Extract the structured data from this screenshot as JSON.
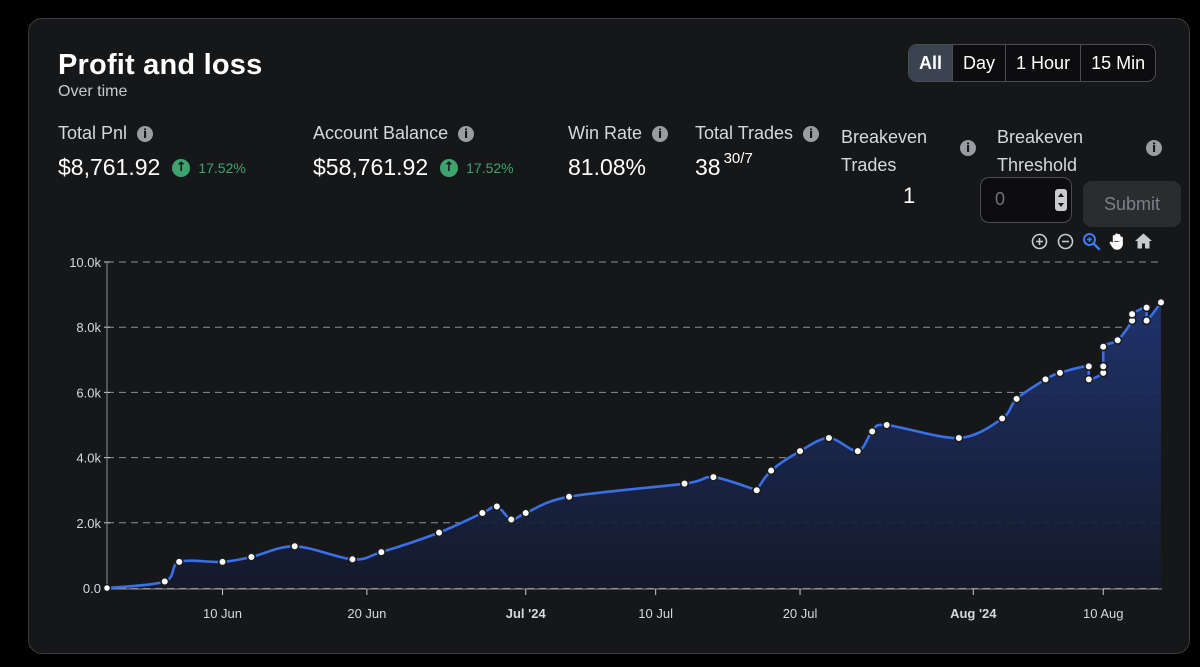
{
  "header": {
    "title": "Profit and loss",
    "subtitle": "Over time"
  },
  "range_tabs": [
    {
      "label": "All",
      "active": true
    },
    {
      "label": "Day",
      "active": false
    },
    {
      "label": "1 Hour",
      "active": false
    },
    {
      "label": "15 Min",
      "active": false
    }
  ],
  "metrics": {
    "total_pnl": {
      "label": "Total Pnl",
      "value": "$8,761.92",
      "change": "17.52%"
    },
    "account_balance": {
      "label": "Account Balance",
      "value": "$58,761.92",
      "change": "17.52%"
    },
    "win_rate": {
      "label": "Win Rate",
      "value": "81.08%"
    },
    "total_trades": {
      "label": "Total Trades",
      "value": "38",
      "split": "30/7"
    },
    "breakeven_trades": {
      "label_line1": "Breakeven",
      "label_line2": "Trades",
      "value": "1"
    },
    "breakeven_threshold": {
      "label_line1": "Breakeven",
      "label_line2": "Threshold",
      "input_value": "0"
    }
  },
  "submit_label": "Submit",
  "toolbar_icons": [
    "zoom-in-icon",
    "zoom-out-icon",
    "selection-zoom-icon",
    "pan-hand-icon",
    "home-reset-icon"
  ],
  "colors": {
    "line": "#3a6fe6",
    "area_top": "#1f3470",
    "area_bottom": "#141a2c",
    "positive": "#3ea46e",
    "active_tab": "#3b4250",
    "zoom_active": "#3a7bff"
  },
  "chart_data": {
    "type": "area",
    "title": "",
    "xlabel": "",
    "ylabel": "",
    "ylim": [
      0,
      10000
    ],
    "y_ticks": [
      "0.0",
      "2.0k",
      "4.0k",
      "6.0k",
      "8.0k",
      "10.0k"
    ],
    "x_ticks": [
      {
        "date": "2024-06-10",
        "label": "10 Jun",
        "bold": false
      },
      {
        "date": "2024-06-20",
        "label": "20 Jun",
        "bold": false
      },
      {
        "date": "2024-07-01",
        "label": "Jul '24",
        "bold": true
      },
      {
        "date": "2024-07-10",
        "label": "10 Jul",
        "bold": false
      },
      {
        "date": "2024-07-20",
        "label": "20 Jul",
        "bold": false
      },
      {
        "date": "2024-08-01",
        "label": "Aug '24",
        "bold": true
      },
      {
        "date": "2024-08-10",
        "label": "10 Aug",
        "bold": false
      }
    ],
    "xlim": [
      "2024-06-02",
      "2024-08-14"
    ],
    "grid": true,
    "series": [
      {
        "values": [
          {
            "x": "2024-06-02",
            "y": 0
          },
          {
            "x": "2024-06-06",
            "y": 200
          },
          {
            "x": "2024-06-07",
            "y": 800
          },
          {
            "x": "2024-06-10",
            "y": 800
          },
          {
            "x": "2024-06-12",
            "y": 950
          },
          {
            "x": "2024-06-15",
            "y": 1280
          },
          {
            "x": "2024-06-19",
            "y": 880
          },
          {
            "x": "2024-06-21",
            "y": 1100
          },
          {
            "x": "2024-06-25",
            "y": 1700
          },
          {
            "x": "2024-06-28",
            "y": 2300
          },
          {
            "x": "2024-06-29",
            "y": 2500
          },
          {
            "x": "2024-06-30",
            "y": 2100
          },
          {
            "x": "2024-07-01",
            "y": 2300
          },
          {
            "x": "2024-07-04",
            "y": 2800
          },
          {
            "x": "2024-07-12",
            "y": 3200
          },
          {
            "x": "2024-07-14",
            "y": 3400
          },
          {
            "x": "2024-07-17",
            "y": 3000
          },
          {
            "x": "2024-07-17",
            "y": 3000
          },
          {
            "x": "2024-07-18",
            "y": 3600
          },
          {
            "x": "2024-07-20",
            "y": 4200
          },
          {
            "x": "2024-07-22",
            "y": 4600
          },
          {
            "x": "2024-07-24",
            "y": 4200
          },
          {
            "x": "2024-07-25",
            "y": 4800
          },
          {
            "x": "2024-07-26",
            "y": 5000
          },
          {
            "x": "2024-07-31",
            "y": 4600
          },
          {
            "x": "2024-08-03",
            "y": 5200
          },
          {
            "x": "2024-08-04",
            "y": 5800
          },
          {
            "x": "2024-08-06",
            "y": 6400
          },
          {
            "x": "2024-08-07",
            "y": 6600
          },
          {
            "x": "2024-08-09",
            "y": 6800
          },
          {
            "x": "2024-08-09",
            "y": 6400
          },
          {
            "x": "2024-08-10",
            "y": 6600
          },
          {
            "x": "2024-08-10",
            "y": 6800
          },
          {
            "x": "2024-08-10",
            "y": 7400
          },
          {
            "x": "2024-08-11",
            "y": 7600
          },
          {
            "x": "2024-08-12",
            "y": 8200
          },
          {
            "x": "2024-08-12",
            "y": 8400
          },
          {
            "x": "2024-08-13",
            "y": 8600
          },
          {
            "x": "2024-08-13",
            "y": 8200
          },
          {
            "x": "2024-08-14",
            "y": 8762
          }
        ]
      }
    ]
  }
}
